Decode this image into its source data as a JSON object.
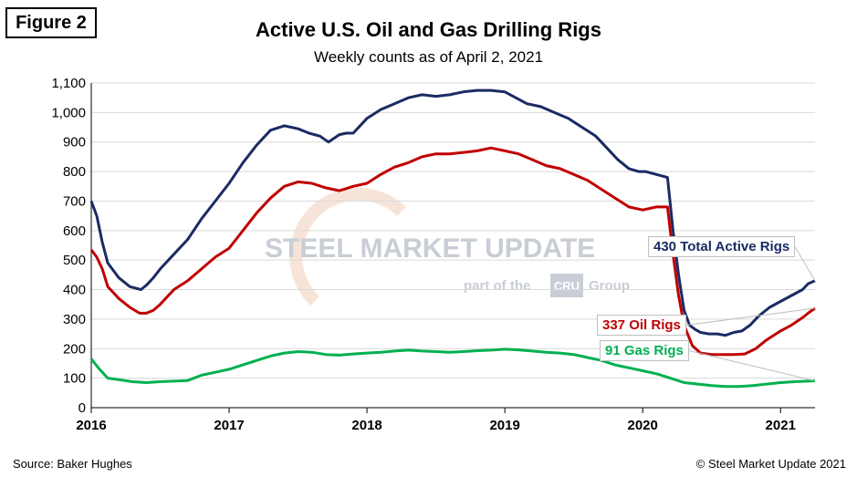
{
  "figure_label": "Figure 2",
  "source": "Source: Baker Hughes",
  "copyright": "© Steel Market Update 2021",
  "watermark": {
    "main": "STEEL MARKET UPDATE",
    "sub_pre": "part of the",
    "sub_logo": "CRU",
    "sub_post": "Group"
  },
  "colors": {
    "total": "#1b2a63",
    "oil": "#c00000",
    "gas": "#00b050",
    "grid": "#d9d9d9",
    "watermark": "#c8cdd6"
  },
  "chart_data": {
    "type": "line",
    "title": "Active U.S. Oil and Gas Drilling Rigs",
    "subtitle": "Weekly counts as of April 2, 2021",
    "ylim": [
      0,
      1100
    ],
    "yticks": [
      0,
      100,
      200,
      300,
      400,
      500,
      600,
      700,
      800,
      900,
      1000,
      1100
    ],
    "ytick_labels": [
      "0",
      "100",
      "200",
      "300",
      "400",
      "500",
      "600",
      "700",
      "800",
      "900",
      "1,000",
      "1,100"
    ],
    "xlim": [
      2016.0,
      2021.25
    ],
    "xticks": [
      2016,
      2017,
      2018,
      2019,
      2020,
      2021
    ],
    "xtick_labels": [
      "2016",
      "2017",
      "2018",
      "2019",
      "2020",
      "2021"
    ],
    "grid": true,
    "series": [
      {
        "key": "total",
        "label": "430 Total Active Rigs",
        "x": [
          2016.0,
          2016.04,
          2016.08,
          2016.12,
          2016.2,
          2016.28,
          2016.36,
          2016.4,
          2016.45,
          2016.5,
          2016.6,
          2016.7,
          2016.8,
          2016.9,
          2017.0,
          2017.1,
          2017.2,
          2017.3,
          2017.4,
          2017.5,
          2017.58,
          2017.66,
          2017.72,
          2017.8,
          2017.85,
          2017.9,
          2018.0,
          2018.1,
          2018.2,
          2018.3,
          2018.4,
          2018.5,
          2018.6,
          2018.7,
          2018.8,
          2018.9,
          2019.0,
          2019.08,
          2019.16,
          2019.26,
          2019.36,
          2019.46,
          2019.56,
          2019.66,
          2019.74,
          2019.82,
          2019.9,
          2019.97,
          2020.02,
          2020.1,
          2020.18,
          2020.22,
          2020.26,
          2020.3,
          2020.34,
          2020.38,
          2020.42,
          2020.48,
          2020.54,
          2020.6,
          2020.66,
          2020.72,
          2020.78,
          2020.84,
          2020.92,
          2021.0,
          2021.08,
          2021.16,
          2021.2,
          2021.25
        ],
        "y": [
          700,
          650,
          560,
          490,
          440,
          410,
          400,
          415,
          440,
          470,
          520,
          570,
          640,
          700,
          760,
          830,
          890,
          940,
          955,
          945,
          930,
          920,
          900,
          925,
          930,
          930,
          980,
          1010,
          1030,
          1050,
          1060,
          1055,
          1060,
          1070,
          1075,
          1075,
          1070,
          1050,
          1030,
          1020,
          1000,
          980,
          950,
          920,
          880,
          840,
          810,
          800,
          800,
          790,
          780,
          600,
          450,
          330,
          280,
          265,
          255,
          250,
          250,
          245,
          255,
          260,
          280,
          310,
          340,
          360,
          380,
          400,
          420,
          430
        ]
      },
      {
        "key": "oil",
        "label": "337 Oil Rigs",
        "x": [
          2016.0,
          2016.04,
          2016.08,
          2016.12,
          2016.2,
          2016.28,
          2016.35,
          2016.4,
          2016.45,
          2016.5,
          2016.6,
          2016.7,
          2016.8,
          2016.9,
          2017.0,
          2017.1,
          2017.2,
          2017.3,
          2017.4,
          2017.5,
          2017.6,
          2017.7,
          2017.8,
          2017.9,
          2018.0,
          2018.1,
          2018.2,
          2018.3,
          2018.4,
          2018.5,
          2018.6,
          2018.7,
          2018.8,
          2018.9,
          2019.0,
          2019.1,
          2019.2,
          2019.3,
          2019.4,
          2019.5,
          2019.6,
          2019.7,
          2019.8,
          2019.9,
          2020.0,
          2020.1,
          2020.18,
          2020.22,
          2020.26,
          2020.3,
          2020.36,
          2020.42,
          2020.5,
          2020.58,
          2020.66,
          2020.74,
          2020.82,
          2020.9,
          2021.0,
          2021.08,
          2021.16,
          2021.2,
          2021.25
        ],
        "y": [
          535,
          510,
          470,
          410,
          370,
          340,
          320,
          320,
          330,
          350,
          400,
          430,
          470,
          510,
          540,
          600,
          660,
          710,
          750,
          765,
          760,
          745,
          735,
          750,
          760,
          790,
          815,
          830,
          850,
          860,
          860,
          865,
          870,
          880,
          870,
          860,
          840,
          820,
          810,
          790,
          770,
          740,
          710,
          680,
          670,
          680,
          680,
          520,
          380,
          280,
          210,
          185,
          180,
          180,
          180,
          182,
          200,
          230,
          260,
          280,
          305,
          320,
          337
        ]
      },
      {
        "key": "gas",
        "label": "91 Gas Rigs",
        "x": [
          2016.0,
          2016.06,
          2016.12,
          2016.2,
          2016.3,
          2016.4,
          2016.5,
          2016.6,
          2016.7,
          2016.8,
          2016.9,
          2017.0,
          2017.1,
          2017.2,
          2017.3,
          2017.4,
          2017.5,
          2017.6,
          2017.7,
          2017.8,
          2017.9,
          2018.0,
          2018.1,
          2018.2,
          2018.3,
          2018.4,
          2018.5,
          2018.6,
          2018.7,
          2018.8,
          2018.9,
          2019.0,
          2019.1,
          2019.2,
          2019.3,
          2019.4,
          2019.5,
          2019.6,
          2019.7,
          2019.8,
          2019.9,
          2020.0,
          2020.1,
          2020.2,
          2020.3,
          2020.4,
          2020.5,
          2020.6,
          2020.7,
          2020.8,
          2020.9,
          2021.0,
          2021.1,
          2021.2,
          2021.25
        ],
        "y": [
          165,
          130,
          100,
          95,
          88,
          85,
          88,
          90,
          92,
          110,
          120,
          130,
          145,
          160,
          175,
          185,
          190,
          188,
          180,
          178,
          182,
          185,
          188,
          192,
          195,
          192,
          190,
          188,
          190,
          193,
          195,
          198,
          196,
          192,
          188,
          185,
          180,
          170,
          160,
          145,
          135,
          125,
          115,
          100,
          85,
          80,
          75,
          72,
          72,
          75,
          80,
          85,
          88,
          90,
          91
        ]
      }
    ]
  }
}
